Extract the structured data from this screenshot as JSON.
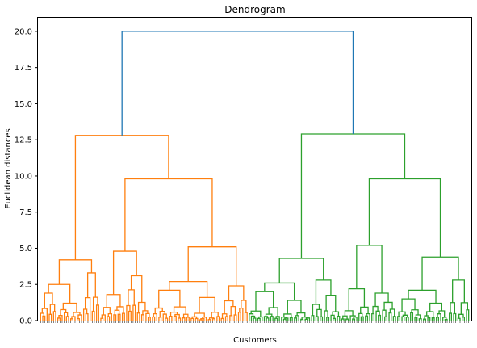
{
  "chart_data": {
    "type": "dendrogram",
    "title": "Dendrogram",
    "xlabel": "Customers",
    "ylabel": "Euclidean distances",
    "ylim": [
      0,
      21
    ],
    "y_ticks": [
      "0.0",
      "2.5",
      "5.0",
      "7.5",
      "10.0",
      "12.5",
      "15.0",
      "17.5",
      "20.0"
    ],
    "leaf_count": 200,
    "root_merge_height": 20.0,
    "grid": false,
    "colors": {
      "cluster_1": "#ff7f0e",
      "cluster_2": "#2ca02c",
      "above_threshold": "#1f77b4"
    },
    "merges": [
      {
        "cluster": "root",
        "color": "above_threshold",
        "height": 20.0
      },
      {
        "cluster": "left",
        "color": "cluster_1",
        "height": 12.8
      },
      {
        "cluster": "left.A",
        "color": "cluster_1",
        "height": 4.2
      },
      {
        "cluster": "left.B",
        "color": "cluster_1",
        "height": 9.8
      },
      {
        "cluster": "left.B1",
        "color": "cluster_1",
        "height": 4.8
      },
      {
        "cluster": "left.B2",
        "color": "cluster_1",
        "height": 5.1
      },
      {
        "cluster": "right",
        "color": "cluster_2",
        "height": 12.9
      },
      {
        "cluster": "right.A",
        "color": "cluster_2",
        "height": 4.3
      },
      {
        "cluster": "right.B",
        "color": "cluster_2",
        "height": 9.8
      },
      {
        "cluster": "right.B1",
        "color": "cluster_2",
        "height": 5.2
      },
      {
        "cluster": "right.B2",
        "color": "cluster_2",
        "height": 4.4
      }
    ]
  }
}
